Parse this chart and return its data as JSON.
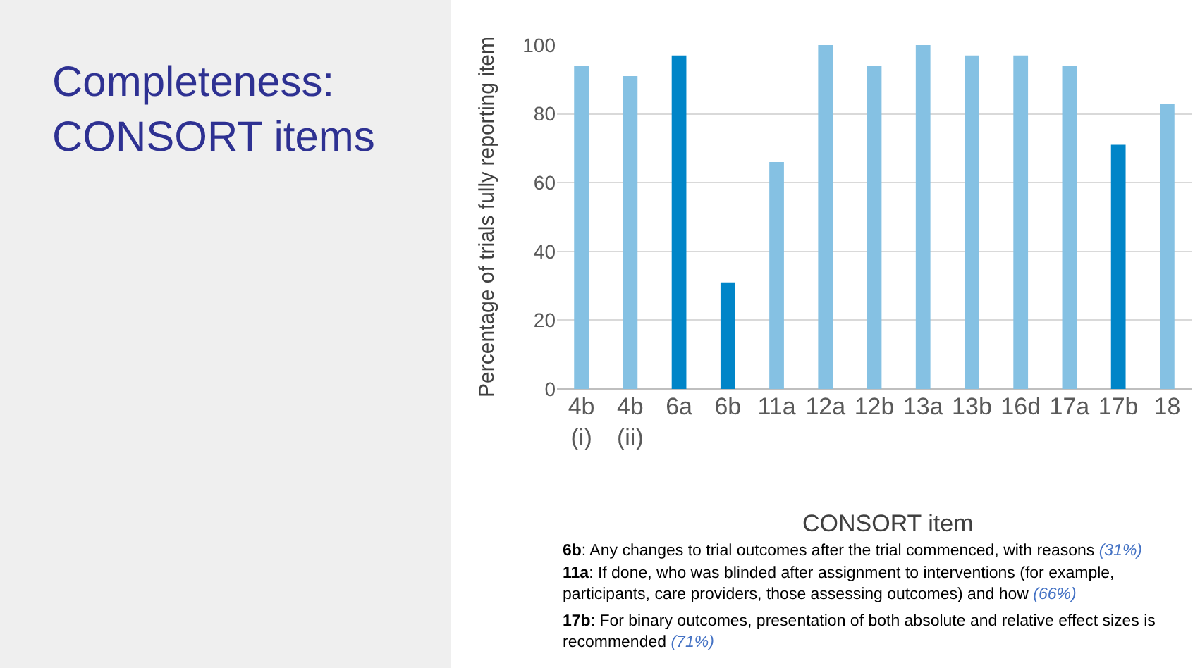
{
  "chart_data": {
    "type": "bar",
    "title": "Completeness:\nCONSORT items",
    "categories": [
      "4b\n(i)",
      "4b\n(ii)",
      "6a",
      "6b",
      "11a",
      "12a",
      "12b",
      "13a",
      "13b",
      "16d",
      "17a",
      "17b",
      "18"
    ],
    "values": [
      94,
      91,
      97,
      31,
      66,
      100,
      94,
      100,
      97,
      97,
      94,
      71,
      83
    ],
    "colors": [
      "#85c1e3",
      "#85c1e3",
      "#0085c8",
      "#0085c8",
      "#85c1e3",
      "#85c1e3",
      "#85c1e3",
      "#85c1e3",
      "#85c1e3",
      "#85c1e3",
      "#85c1e3",
      "#0085c8",
      "#85c1e3"
    ],
    "xlabel": "CONSORT item",
    "ylabel": "Percentage of trials fully reporting item",
    "ylim": [
      0,
      100
    ],
    "yticks": [
      0,
      20,
      40,
      60,
      80,
      100
    ],
    "grid": "y",
    "legend": false,
    "annotations": [
      "6b: Any changes to trial outcomes after the trial commenced, with reasons (31%)",
      "11a: If done, who was blinded after assignment to interventions (for example,\nparticipants, care providers, those assessing outcomes) and how (66%)",
      "17b: For binary outcomes, presentation of both absolute and relative effect sizes is\nrecommended (71%)"
    ]
  }
}
